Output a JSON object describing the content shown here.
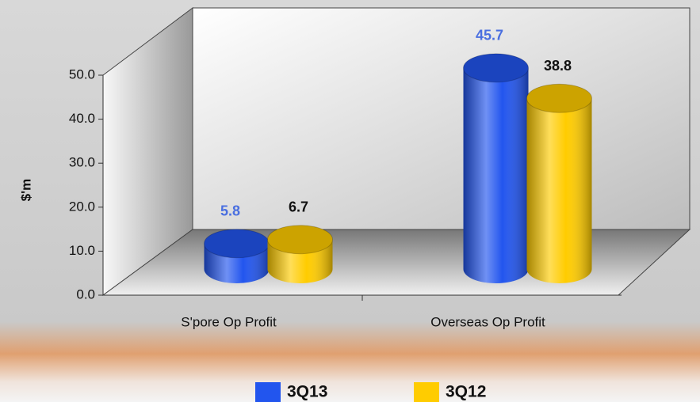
{
  "chart_data": {
    "type": "bar3d",
    "y_label": "$'m",
    "categories": [
      "S'pore Op Profit",
      "Overseas Op Profit"
    ],
    "series": [
      {
        "name": "3Q13",
        "color": "#2255ee",
        "label_color": "#4a6fe0",
        "values": [
          5.8,
          45.7
        ]
      },
      {
        "name": "3Q12",
        "color": "#ffcc00",
        "label_color": "#111111",
        "values": [
          6.7,
          38.8
        ]
      }
    ],
    "ylim": [
      0,
      50
    ],
    "yticks": [
      {
        "value": 0,
        "label": "0.0"
      },
      {
        "value": 10,
        "label": "10.0"
      },
      {
        "value": 20,
        "label": "20.0"
      },
      {
        "value": 30,
        "label": "30.0"
      },
      {
        "value": 40,
        "label": "40.0"
      },
      {
        "value": 50,
        "label": "50.0"
      }
    ],
    "legend": "bottom"
  }
}
